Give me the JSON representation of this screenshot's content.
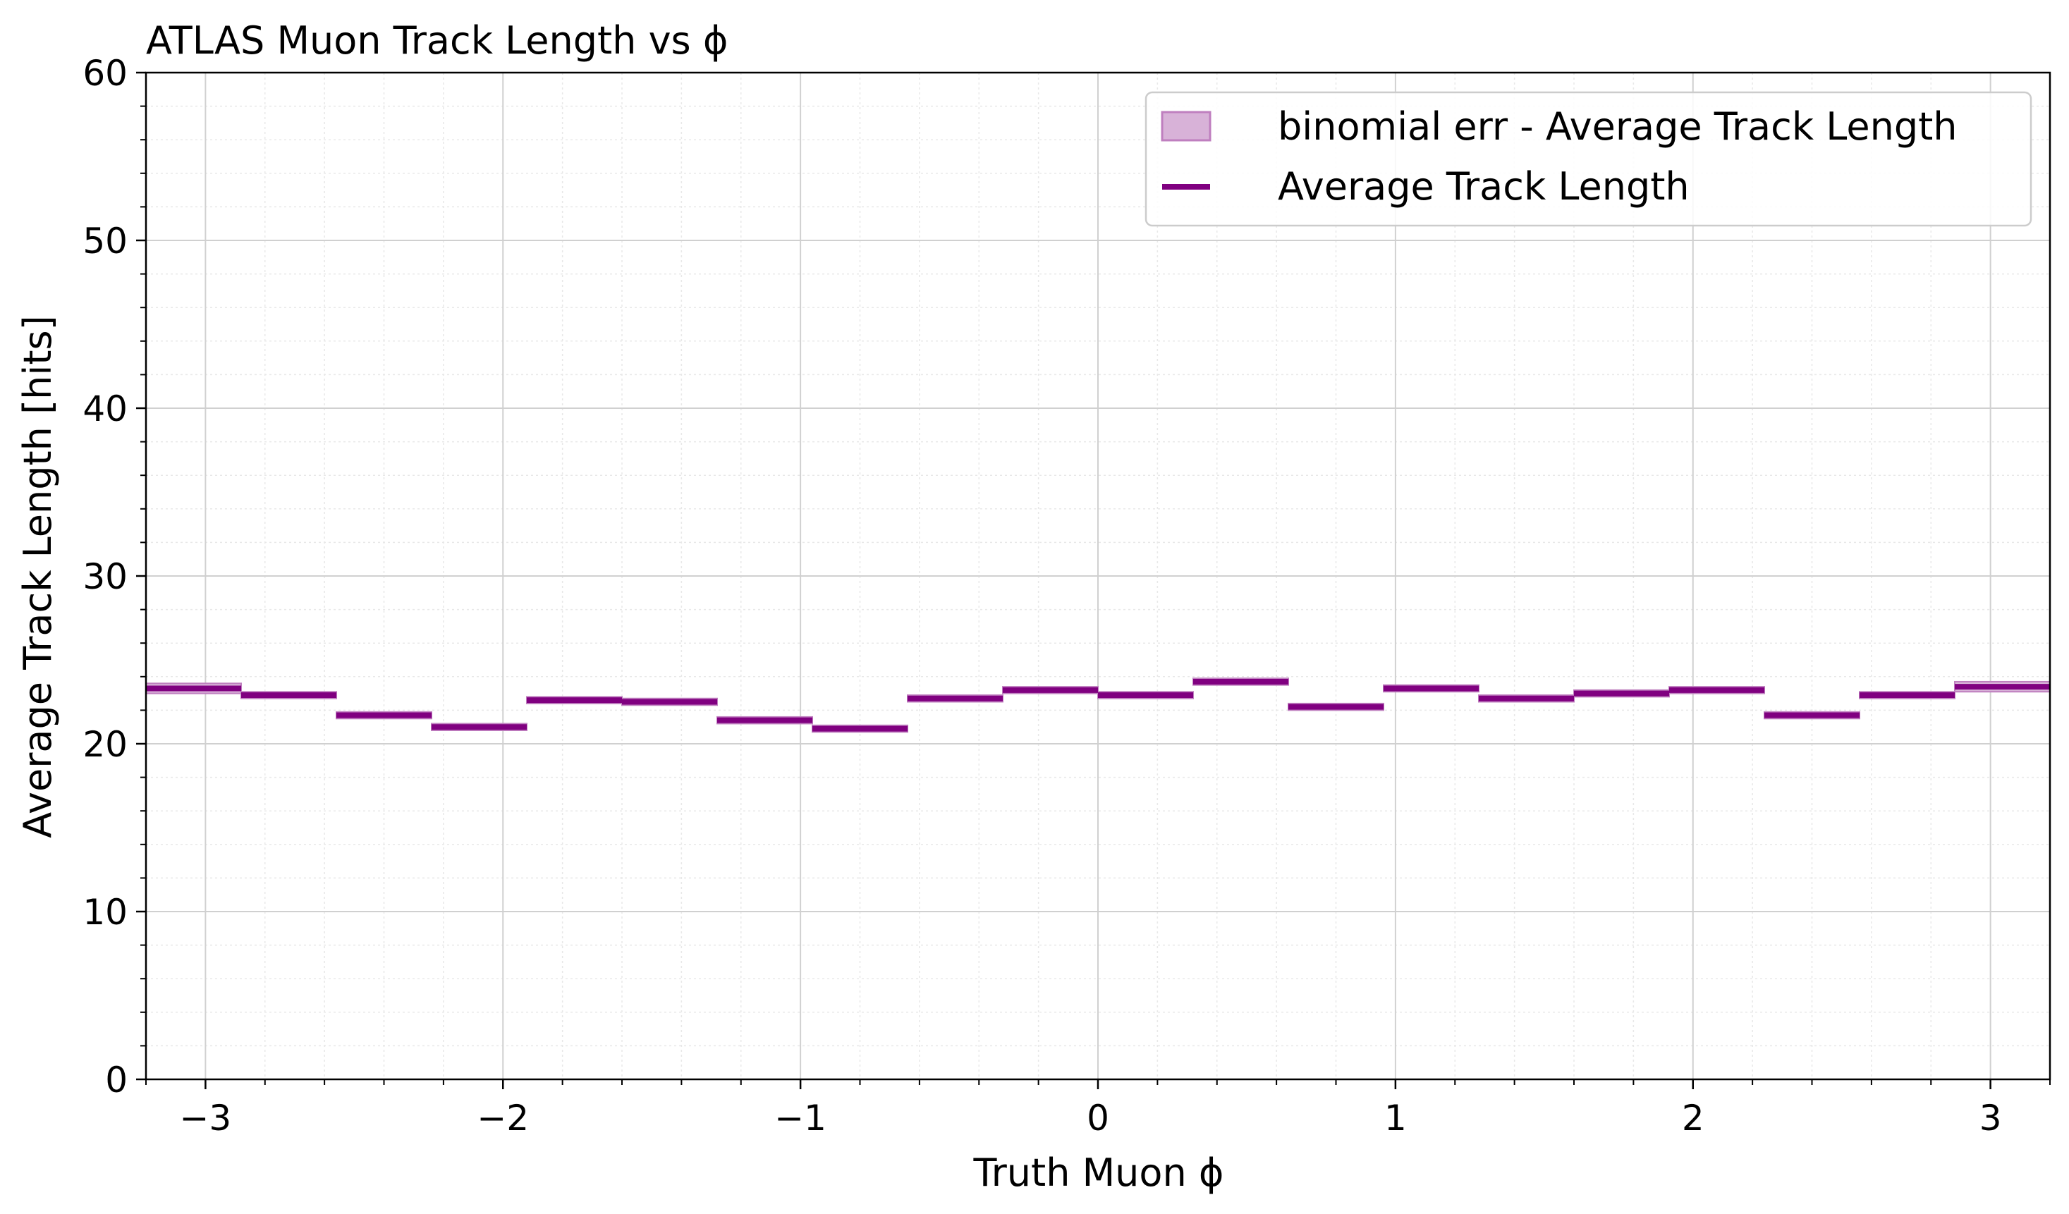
{
  "chart_data": {
    "type": "line",
    "title": "ATLAS Muon Track Length vs ϕ",
    "xlabel": "Truth Muon ϕ",
    "ylabel": "Average Track Length [hits]",
    "xlim": [
      -3.2,
      3.2
    ],
    "ylim": [
      0,
      60
    ],
    "xticks": [
      -3,
      -2,
      -1,
      0,
      1,
      2,
      3
    ],
    "xtick_labels": [
      "−3",
      "−2",
      "−1",
      "0",
      "1",
      "2",
      "3"
    ],
    "yticks": [
      0,
      10,
      20,
      30,
      40,
      50,
      60
    ],
    "ytick_labels": [
      "0",
      "10",
      "20",
      "30",
      "40",
      "50",
      "60"
    ],
    "grid": true,
    "legend_position": "top-right",
    "bin_edges": [
      -3.2,
      -2.88,
      -2.56,
      -2.24,
      -1.92,
      -1.6,
      -1.28,
      -0.96,
      -0.64,
      -0.32,
      0.0,
      0.32,
      0.64,
      0.96,
      1.28,
      1.6,
      1.92,
      2.24,
      2.56,
      2.88,
      3.2
    ],
    "series": [
      {
        "name": "Average Track Length",
        "style": "step",
        "color": "#800080",
        "values": [
          23.3,
          22.9,
          21.7,
          21.0,
          22.6,
          22.5,
          21.4,
          20.9,
          22.7,
          23.2,
          22.9,
          23.7,
          22.2,
          23.3,
          22.7,
          23.0,
          23.2,
          21.7,
          22.9,
          23.4
        ]
      },
      {
        "name": "binomial err - Average Track Length",
        "style": "band",
        "color": "#d8b2d8",
        "edge_color": "#bf7fbf",
        "errors": [
          0.3,
          0.2,
          0.2,
          0.2,
          0.2,
          0.2,
          0.2,
          0.2,
          0.2,
          0.2,
          0.2,
          0.2,
          0.2,
          0.2,
          0.2,
          0.2,
          0.2,
          0.2,
          0.2,
          0.3
        ]
      }
    ]
  }
}
